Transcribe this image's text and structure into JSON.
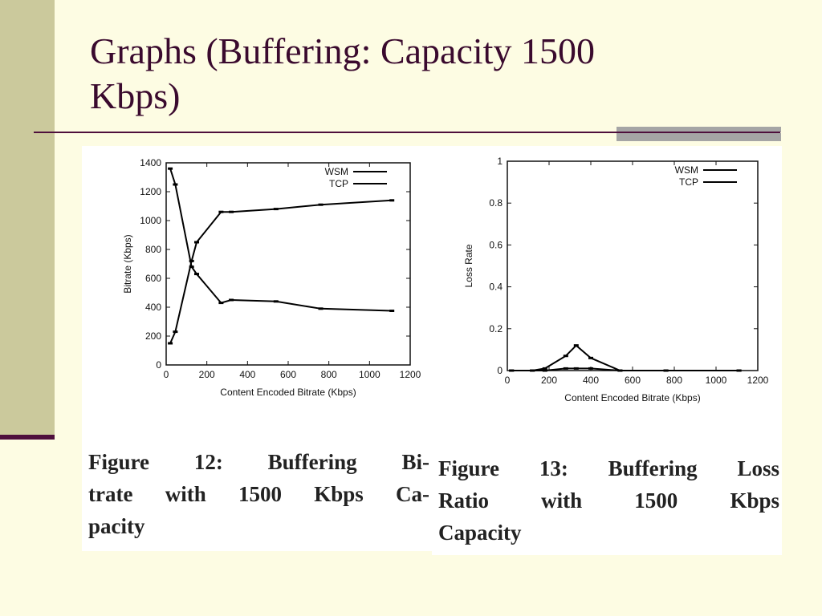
{
  "slide": {
    "title_line1": "Graphs (Buffering: Capacity 1500",
    "title_line2": "Kbps)"
  },
  "colors": {
    "background": "#fdfce3",
    "left_bar": "#cbc99c",
    "accent": "#4e0f3c",
    "title_text": "#3a0a2e",
    "rule_grey": "#a5a5a5"
  },
  "captions": {
    "fig12": {
      "line1": "Figure 12: Buffering Bi-",
      "line2": "trate with 1500 Kbps Ca-",
      "line3": "pacity"
    },
    "fig13": {
      "line1": "Figure 13: Buffering Loss",
      "line2": "Ratio with 1500 Kbps",
      "line3": "Capacity"
    }
  },
  "chart_data": [
    {
      "type": "line",
      "xlabel": "Content Encoded Bitrate (Kbps)",
      "ylabel": "Bitrate (Kbps)",
      "xlim": [
        0,
        1200
      ],
      "ylim": [
        0,
        1400
      ],
      "xticks": [
        0,
        200,
        400,
        600,
        800,
        1000,
        1200
      ],
      "yticks": [
        0,
        200,
        400,
        600,
        800,
        1000,
        1200,
        1400
      ],
      "legend": "top-right",
      "grid": false,
      "series": [
        {
          "name": "WSM",
          "x": [
            20,
            45,
            125,
            150,
            270,
            320,
            540,
            760,
            1110
          ],
          "y": [
            1360,
            1250,
            680,
            630,
            430,
            450,
            440,
            390,
            375
          ]
        },
        {
          "name": "TCP",
          "x": [
            20,
            45,
            125,
            150,
            270,
            320,
            540,
            760,
            1110
          ],
          "y": [
            150,
            230,
            720,
            850,
            1060,
            1060,
            1080,
            1110,
            1140
          ]
        }
      ]
    },
    {
      "type": "line",
      "xlabel": "Content Encoded Bitrate (Kbps)",
      "ylabel": "Loss Rate",
      "xlim": [
        0,
        1200
      ],
      "ylim": [
        0,
        1
      ],
      "xticks": [
        0,
        200,
        400,
        600,
        800,
        1000,
        1200
      ],
      "yticks": [
        0,
        0.2,
        0.4,
        0.6,
        0.8,
        1
      ],
      "legend": "top-right",
      "grid": false,
      "series": [
        {
          "name": "WSM",
          "x": [
            20,
            120,
            180,
            280,
            330,
            400,
            540,
            760,
            1110
          ],
          "y": [
            0,
            0,
            0.01,
            0.07,
            0.12,
            0.06,
            0,
            0,
            0
          ]
        },
        {
          "name": "TCP",
          "x": [
            20,
            120,
            180,
            280,
            330,
            400,
            540,
            760,
            1110
          ],
          "y": [
            0,
            0,
            0,
            0.01,
            0.01,
            0.01,
            0,
            0,
            0
          ]
        }
      ]
    }
  ]
}
